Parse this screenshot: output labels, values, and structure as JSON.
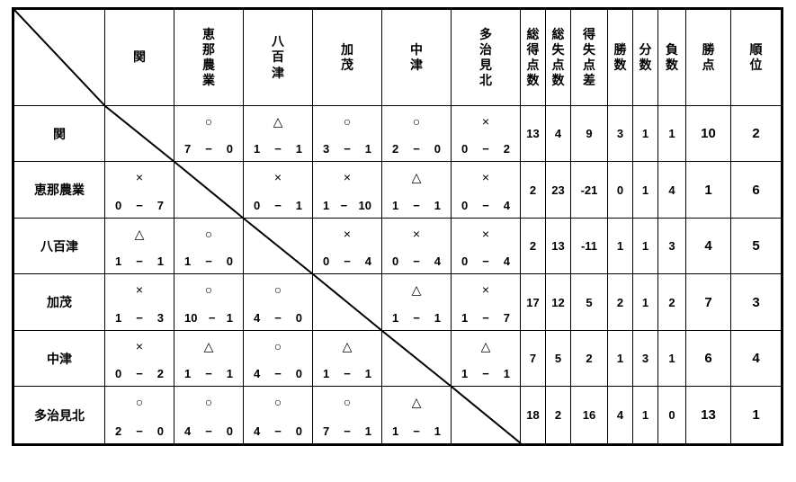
{
  "table": {
    "score_separator": "−",
    "column_headers": [
      "関",
      "恵那農業",
      "八百津",
      "加茂",
      "中津",
      "多治見北"
    ],
    "stat_headers": [
      "総得点数",
      "総失点数",
      "得失点差",
      "勝数",
      "分数",
      "負数",
      "勝点",
      "順位"
    ],
    "result_symbols": {
      "win": "○",
      "draw": "△",
      "loss": "×"
    },
    "rows": [
      {
        "team": "関",
        "matches": [
          null,
          {
            "symbol": "○",
            "score": [
              "7",
              "0"
            ]
          },
          {
            "symbol": "△",
            "score": [
              "1",
              "1"
            ]
          },
          {
            "symbol": "○",
            "score": [
              "3",
              "1"
            ]
          },
          {
            "symbol": "○",
            "score": [
              "2",
              "0"
            ]
          },
          {
            "symbol": "×",
            "score": [
              "0",
              "2"
            ]
          }
        ],
        "stats": [
          "13",
          "4",
          "9",
          "3",
          "1",
          "1",
          "10",
          "2"
        ]
      },
      {
        "team": "恵那農業",
        "matches": [
          {
            "symbol": "×",
            "score": [
              "0",
              "7"
            ]
          },
          null,
          {
            "symbol": "×",
            "score": [
              "0",
              "1"
            ]
          },
          {
            "symbol": "×",
            "score": [
              "1",
              "10"
            ]
          },
          {
            "symbol": "△",
            "score": [
              "1",
              "1"
            ]
          },
          {
            "symbol": "×",
            "score": [
              "0",
              "4"
            ]
          }
        ],
        "stats": [
          "2",
          "23",
          "-21",
          "0",
          "1",
          "4",
          "1",
          "6"
        ]
      },
      {
        "team": "八百津",
        "matches": [
          {
            "symbol": "△",
            "score": [
              "1",
              "1"
            ]
          },
          {
            "symbol": "○",
            "score": [
              "1",
              "0"
            ]
          },
          null,
          {
            "symbol": "×",
            "score": [
              "0",
              "4"
            ]
          },
          {
            "symbol": "×",
            "score": [
              "0",
              "4"
            ]
          },
          {
            "symbol": "×",
            "score": [
              "0",
              "4"
            ]
          }
        ],
        "stats": [
          "2",
          "13",
          "-11",
          "1",
          "1",
          "3",
          "4",
          "5"
        ]
      },
      {
        "team": "加茂",
        "matches": [
          {
            "symbol": "×",
            "score": [
              "1",
              "3"
            ]
          },
          {
            "symbol": "○",
            "score": [
              "10",
              "1"
            ]
          },
          {
            "symbol": "○",
            "score": [
              "4",
              "0"
            ]
          },
          null,
          {
            "symbol": "△",
            "score": [
              "1",
              "1"
            ]
          },
          {
            "symbol": "×",
            "score": [
              "1",
              "7"
            ]
          }
        ],
        "stats": [
          "17",
          "12",
          "5",
          "2",
          "1",
          "2",
          "7",
          "3"
        ]
      },
      {
        "team": "中津",
        "matches": [
          {
            "symbol": "×",
            "score": [
              "0",
              "2"
            ]
          },
          {
            "symbol": "△",
            "score": [
              "1",
              "1"
            ]
          },
          {
            "symbol": "○",
            "score": [
              "4",
              "0"
            ]
          },
          {
            "symbol": "△",
            "score": [
              "1",
              "1"
            ]
          },
          null,
          {
            "symbol": "△",
            "score": [
              "1",
              "1"
            ]
          }
        ],
        "stats": [
          "7",
          "5",
          "2",
          "1",
          "3",
          "1",
          "6",
          "4"
        ]
      },
      {
        "team": "多治見北",
        "matches": [
          {
            "symbol": "○",
            "score": [
              "2",
              "0"
            ]
          },
          {
            "symbol": "○",
            "score": [
              "4",
              "0"
            ]
          },
          {
            "symbol": "○",
            "score": [
              "4",
              "0"
            ]
          },
          {
            "symbol": "○",
            "score": [
              "7",
              "1"
            ]
          },
          {
            "symbol": "△",
            "score": [
              "1",
              "1"
            ]
          },
          null
        ],
        "stats": [
          "18",
          "2",
          "16",
          "4",
          "1",
          "0",
          "13",
          "1"
        ]
      }
    ]
  },
  "colors": {
    "border": "#000000",
    "background": "#ffffff",
    "text": "#000000"
  }
}
